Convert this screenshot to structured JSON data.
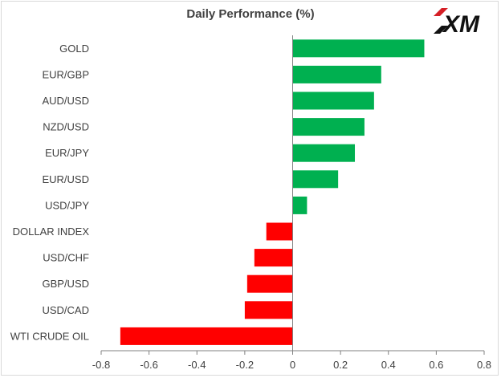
{
  "header": {
    "title": "Daily Performance (%)",
    "logo_text": "XM"
  },
  "chart_data": {
    "type": "bar",
    "orientation": "horizontal",
    "title": "Daily Performance (%)",
    "xlabel": "",
    "ylabel": "",
    "xlim": [
      -0.8,
      0.8
    ],
    "xticks": [
      -0.8,
      -0.6,
      -0.4,
      -0.2,
      0,
      0.2,
      0.4,
      0.6,
      0.8
    ],
    "grid": false,
    "legend": "none",
    "categories": [
      "GOLD",
      "EUR/GBP",
      "AUD/USD",
      "NZD/USD",
      "EUR/JPY",
      "EUR/USD",
      "USD/JPY",
      "DOLLAR INDEX",
      "USD/CHF",
      "GBP/USD",
      "USD/CAD",
      "WTI CRUDE OIL"
    ],
    "values": [
      0.55,
      0.37,
      0.34,
      0.3,
      0.26,
      0.19,
      0.06,
      -0.11,
      -0.16,
      -0.19,
      -0.2,
      -0.72
    ],
    "colors": {
      "positive": "#00b050",
      "negative": "#ff0000",
      "axis": "#808080"
    }
  }
}
